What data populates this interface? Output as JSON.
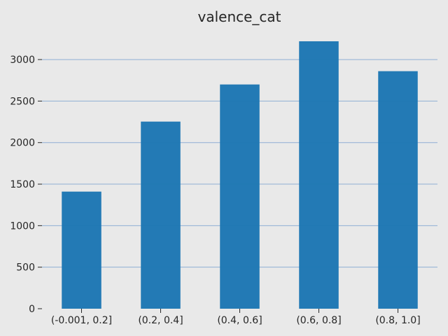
{
  "chart_data": {
    "type": "bar",
    "title": "valence_cat",
    "xlabel": "",
    "ylabel": "",
    "categories": [
      "(-0.001, 0.2]",
      "(0.2, 0.4]",
      "(0.4, 0.6]",
      "(0.6, 0.8]",
      "(0.8, 1.0]"
    ],
    "values": [
      1410,
      2253,
      2700,
      3220,
      2860
    ],
    "ylim": [
      0,
      3380
    ],
    "yticks": [
      0,
      500,
      1000,
      1500,
      2000,
      2500,
      3000
    ],
    "grid": "horizontal",
    "legend": "none",
    "colors": {
      "bar": "#1f77b4",
      "background": "#e9e9e9",
      "grid": "#8faed4"
    }
  }
}
